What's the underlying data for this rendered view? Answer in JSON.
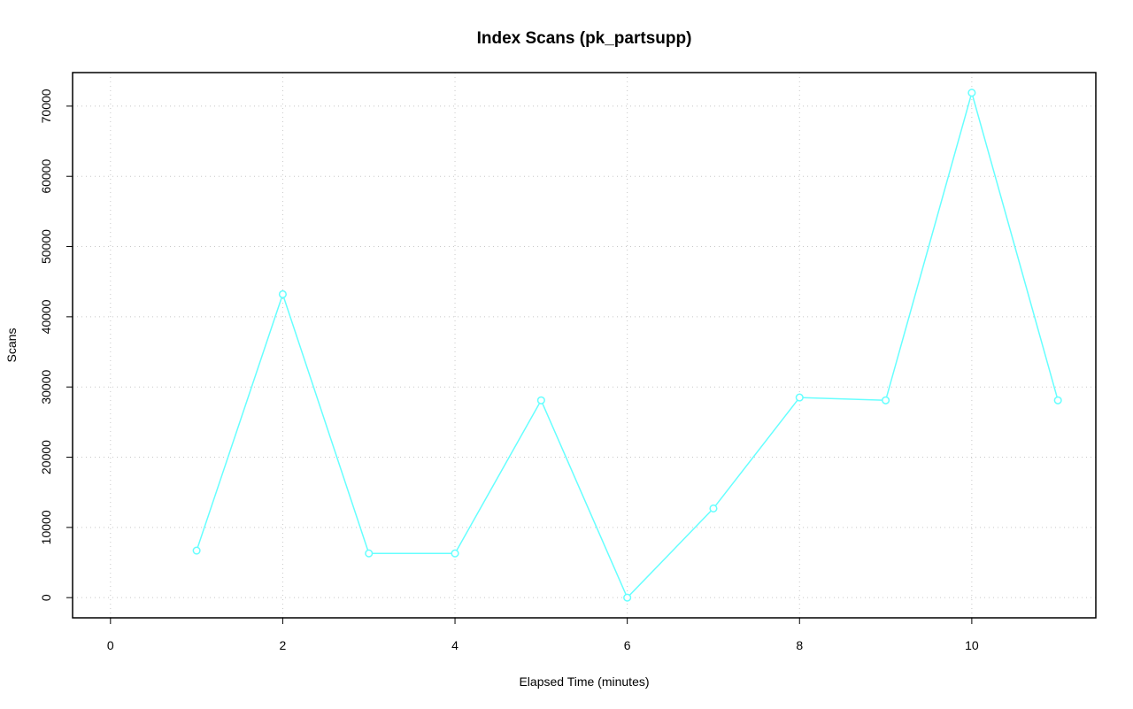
{
  "chart_data": {
    "type": "line",
    "title": "Index Scans (pk_partsupp)",
    "xlabel": "Elapsed Time (minutes)",
    "ylabel": "Scans",
    "x": [
      1,
      2,
      3,
      4,
      5,
      6,
      7,
      8,
      9,
      10,
      11
    ],
    "values": [
      6700,
      43200,
      6300,
      6300,
      28100,
      0,
      12700,
      28500,
      28100,
      71900,
      28100
    ],
    "color": "#66ffff",
    "xlim": [
      -0.44,
      11.44
    ],
    "ylim": [
      -2876,
      74776
    ],
    "xticks": [
      0,
      2,
      4,
      6,
      8,
      10
    ],
    "yticks": [
      0,
      10000,
      20000,
      30000,
      40000,
      50000,
      60000,
      70000
    ],
    "grid": true
  }
}
